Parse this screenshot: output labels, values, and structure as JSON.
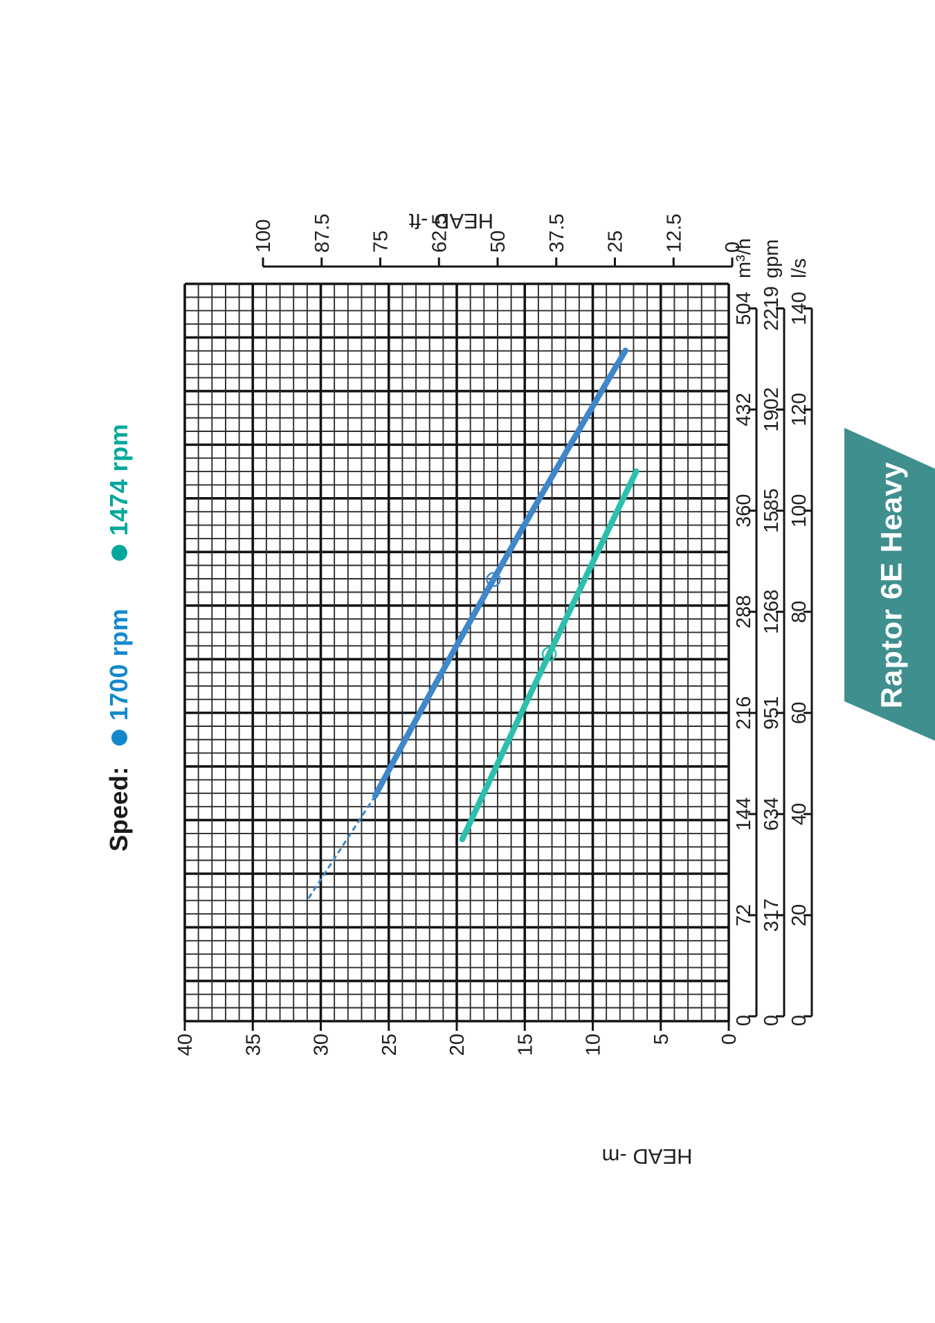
{
  "chart_data": {
    "type": "line",
    "banner_title": "Raptor 6E Heavy",
    "legend": {
      "label": "Speed:",
      "items": [
        {
          "name": "1700 rpm",
          "color": "#1389CB"
        },
        {
          "name": "1474 rpm",
          "color": "#00A89B"
        }
      ]
    },
    "x_axes": [
      {
        "unit": "m³/h",
        "max": 504,
        "ticks": [
          0,
          72,
          144,
          216,
          288,
          360,
          432,
          504
        ]
      },
      {
        "unit": "gpm",
        "max": 2219,
        "ticks": [
          0,
          317,
          634,
          951,
          1268,
          1585,
          1902,
          2219
        ]
      },
      {
        "unit": "l/s",
        "max": 140,
        "ticks": [
          0,
          20,
          40,
          60,
          80,
          100,
          120,
          140
        ]
      }
    ],
    "y_axis_m": {
      "label": "HEAD -m",
      "min": 0,
      "max": 40,
      "ticks": [
        40,
        35,
        30,
        25,
        20,
        15,
        10,
        5,
        0
      ]
    },
    "y_axis_ft": {
      "label": "HEAD -ft",
      "min": 0,
      "max": 100,
      "ticks": [
        100,
        87.5,
        75,
        62.5,
        50,
        37.5,
        25,
        12.5,
        0
      ]
    },
    "grid": {
      "on": true,
      "flow_minor_cells": 55,
      "head_minor_cells": 40,
      "flow_major_every": 4,
      "head_major_every": 5
    },
    "series": [
      {
        "name": "1700 rpm",
        "color": "#3E87C9",
        "dash_segment": [
          [
            84,
            30.9
          ],
          [
            157,
            26.0
          ]
        ],
        "solid_points": [
          [
            157,
            26.0
          ],
          [
            311,
            17.3
          ],
          [
            474,
            7.6
          ]
        ],
        "marker_point": [
          311,
          17.3
        ]
      },
      {
        "name": "1474 rpm",
        "color": "#2CBFAD",
        "solid_points": [
          [
            126,
            19.6
          ],
          [
            258,
            13.2
          ],
          [
            388,
            6.8
          ]
        ],
        "marker_point": [
          258,
          13.2
        ]
      }
    ],
    "banner_color": "#3F8F8F"
  }
}
